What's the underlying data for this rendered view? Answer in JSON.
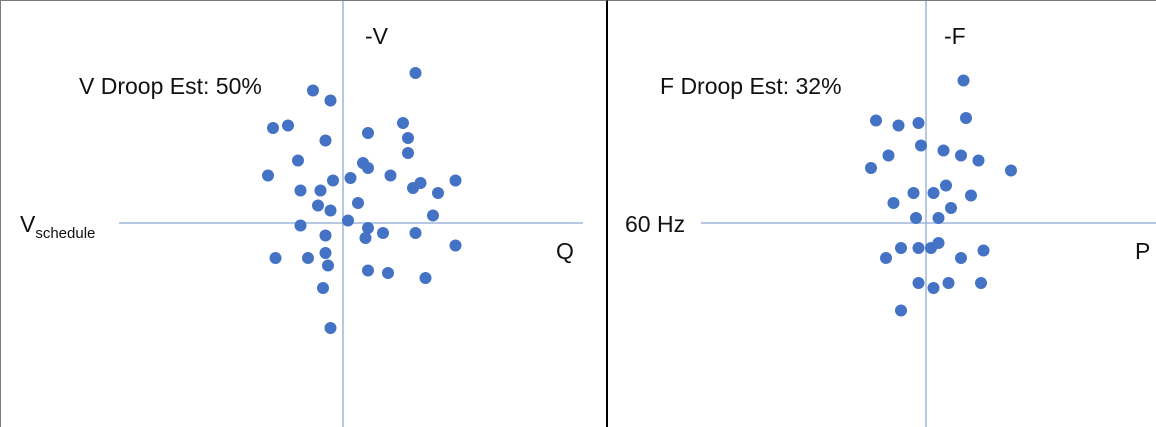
{
  "chart_data": [
    {
      "type": "scatter",
      "title": "V Droop Est: 50%",
      "y_axis_label": "-V",
      "x_axis_label": "Q",
      "origin_label_main": "V",
      "origin_label_sub": "schedule",
      "xlim": [
        -1,
        1
      ],
      "ylim": [
        -1,
        1
      ],
      "grid": false,
      "points": [
        [
          -0.12,
          0.53
        ],
        [
          0.29,
          0.6
        ],
        [
          -0.05,
          0.49
        ],
        [
          -0.28,
          0.38
        ],
        [
          -0.22,
          0.39
        ],
        [
          -0.07,
          0.33
        ],
        [
          0.1,
          0.36
        ],
        [
          0.24,
          0.4
        ],
        [
          0.26,
          0.34
        ],
        [
          -0.18,
          0.25
        ],
        [
          0.08,
          0.24
        ],
        [
          0.26,
          0.28
        ],
        [
          -0.3,
          0.19
        ],
        [
          -0.17,
          0.13
        ],
        [
          -0.09,
          0.13
        ],
        [
          -0.04,
          0.17
        ],
        [
          0.03,
          0.18
        ],
        [
          0.1,
          0.22
        ],
        [
          0.19,
          0.19
        ],
        [
          0.31,
          0.16
        ],
        [
          0.38,
          0.12
        ],
        [
          0.28,
          0.14
        ],
        [
          0.45,
          0.17
        ],
        [
          -0.1,
          0.07
        ],
        [
          -0.05,
          0.05
        ],
        [
          0.06,
          0.08
        ],
        [
          0.36,
          0.03
        ],
        [
          -0.17,
          -0.01
        ],
        [
          0.02,
          0.01
        ],
        [
          0.1,
          -0.02
        ],
        [
          -0.07,
          -0.05
        ],
        [
          0.09,
          -0.06
        ],
        [
          0.16,
          -0.04
        ],
        [
          0.29,
          -0.04
        ],
        [
          0.45,
          -0.09
        ],
        [
          -0.27,
          -0.14
        ],
        [
          -0.14,
          -0.14
        ],
        [
          -0.07,
          -0.12
        ],
        [
          -0.06,
          -0.17
        ],
        [
          0.1,
          -0.19
        ],
        [
          0.18,
          -0.2
        ],
        [
          0.33,
          -0.22
        ],
        [
          -0.08,
          -0.26
        ],
        [
          -0.05,
          -0.42
        ]
      ]
    },
    {
      "type": "scatter",
      "title": "F Droop Est: 32%",
      "y_axis_label": "-F",
      "x_axis_label": "P",
      "origin_label": "60 Hz",
      "xlim": [
        -1,
        1
      ],
      "ylim": [
        -1,
        1
      ],
      "grid": false,
      "points": [
        [
          0.15,
          0.57
        ],
        [
          -0.2,
          0.41
        ],
        [
          0.16,
          0.42
        ],
        [
          -0.11,
          0.39
        ],
        [
          -0.03,
          0.4
        ],
        [
          -0.02,
          0.31
        ],
        [
          0.07,
          0.29
        ],
        [
          0.14,
          0.27
        ],
        [
          0.21,
          0.25
        ],
        [
          -0.15,
          0.27
        ],
        [
          -0.22,
          0.22
        ],
        [
          0.34,
          0.21
        ],
        [
          0.08,
          0.15
        ],
        [
          0.18,
          0.11
        ],
        [
          -0.13,
          0.08
        ],
        [
          -0.05,
          0.12
        ],
        [
          0.03,
          0.12
        ],
        [
          0.1,
          0.06
        ],
        [
          0.05,
          0.02
        ],
        [
          -0.04,
          0.02
        ],
        [
          0.05,
          -0.08
        ],
        [
          0.02,
          -0.1
        ],
        [
          -0.03,
          -0.1
        ],
        [
          -0.1,
          -0.1
        ],
        [
          -0.16,
          -0.14
        ],
        [
          0.14,
          -0.14
        ],
        [
          0.23,
          -0.11
        ],
        [
          -0.03,
          -0.24
        ],
        [
          0.09,
          -0.24
        ],
        [
          0.22,
          -0.24
        ],
        [
          0.03,
          -0.26
        ],
        [
          -0.1,
          -0.35
        ]
      ]
    }
  ],
  "colors": {
    "points": "#4472C4",
    "axis": "#9DB5DC",
    "text": "#111111"
  }
}
